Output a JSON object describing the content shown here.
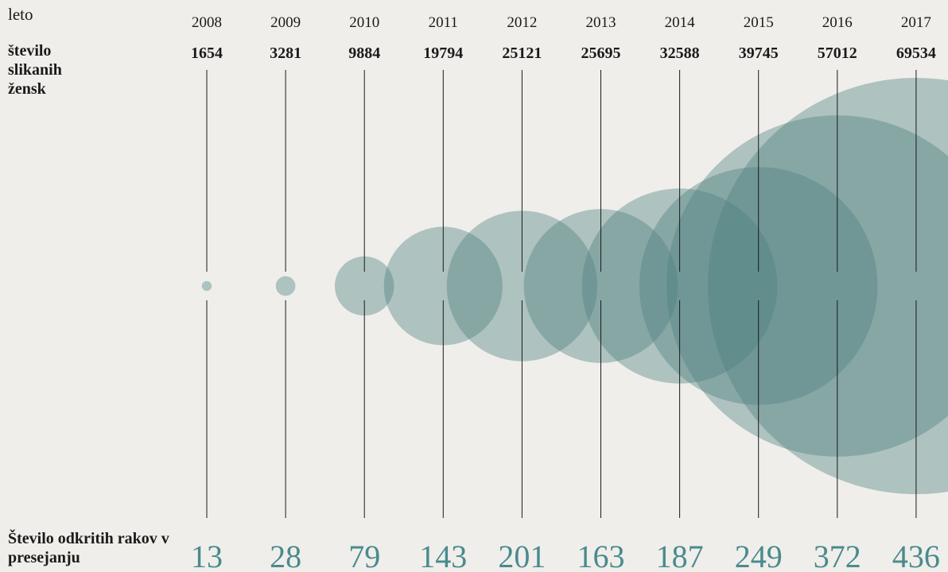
{
  "chart_data": {
    "type": "bubble",
    "x_label": "leto",
    "categories": [
      "2008",
      "2009",
      "2010",
      "2011",
      "2012",
      "2013",
      "2014",
      "2015",
      "2016",
      "2017"
    ],
    "color": "#4d7f80",
    "series": [
      {
        "name": "število slikanih žensk",
        "values": [
          1654,
          3281,
          9884,
          19794,
          25121,
          25695,
          32588,
          39745,
          57012,
          69534
        ]
      },
      {
        "name": "Število odkritih rakov v presejanju",
        "color": "#4a8a8e",
        "values": [
          13,
          28,
          79,
          143,
          201,
          163,
          187,
          249,
          372,
          436
        ]
      }
    ]
  }
}
